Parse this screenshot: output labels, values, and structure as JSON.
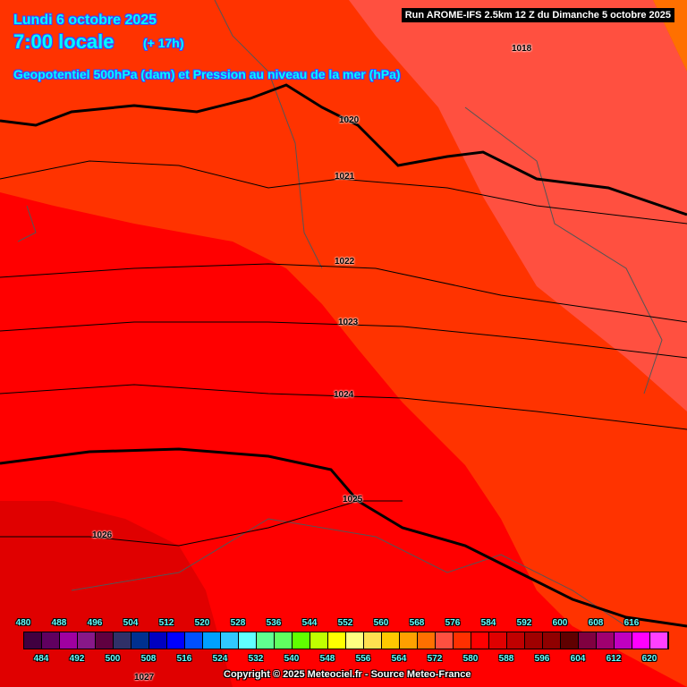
{
  "header": {
    "date": "Lundi 6 octobre 2025",
    "time": "7:00 locale",
    "lead": "(+ 17h)",
    "title": "Geopotentiel 500hPa (dam) et Pression au niveau de la mer (hPa)",
    "run": "Run AROME-IFS 2.5km 12 Z du Dimanche 5 octobre 2025"
  },
  "isobars": [
    "1018",
    "1020",
    "1021",
    "1022",
    "1023",
    "1024",
    "1025",
    "1026",
    "1027"
  ],
  "colorbar": {
    "top_labels": [
      "480",
      "488",
      "496",
      "504",
      "512",
      "520",
      "528",
      "536",
      "544",
      "552",
      "560",
      "568",
      "576",
      "584",
      "592",
      "600",
      "608",
      "616"
    ],
    "bottom_labels": [
      "484",
      "492",
      "500",
      "508",
      "516",
      "524",
      "532",
      "540",
      "548",
      "556",
      "564",
      "572",
      "580",
      "588",
      "596",
      "604",
      "612",
      "620"
    ],
    "colors": [
      "#400040",
      "#600060",
      "#a000a0",
      "#881888",
      "#600040",
      "#303068",
      "#003090",
      "#0000c0",
      "#0000ff",
      "#0050ff",
      "#00a0ff",
      "#30c8ff",
      "#60ffff",
      "#60ff90",
      "#60ff60",
      "#60ff00",
      "#c0ff00",
      "#ffff00",
      "#ffff80",
      "#ffe050",
      "#ffc800",
      "#ffa000",
      "#ff7000",
      "#ff5040",
      "#ff3000",
      "#ff0000",
      "#e00000",
      "#c00000",
      "#a00000",
      "#900000",
      "#600000",
      "#800040",
      "#a00070",
      "#c000c0",
      "#ff00ff",
      "#ff40ff",
      "#ff90ff"
    ]
  },
  "map_colors": {
    "z576": "#ff3300",
    "z572": "#ff5040",
    "z568": "#ff7000",
    "z580": "#ff0000",
    "z584": "#e00000"
  },
  "copyright": "Copyright © 2025 Meteociel.fr - Source Meteo-France"
}
